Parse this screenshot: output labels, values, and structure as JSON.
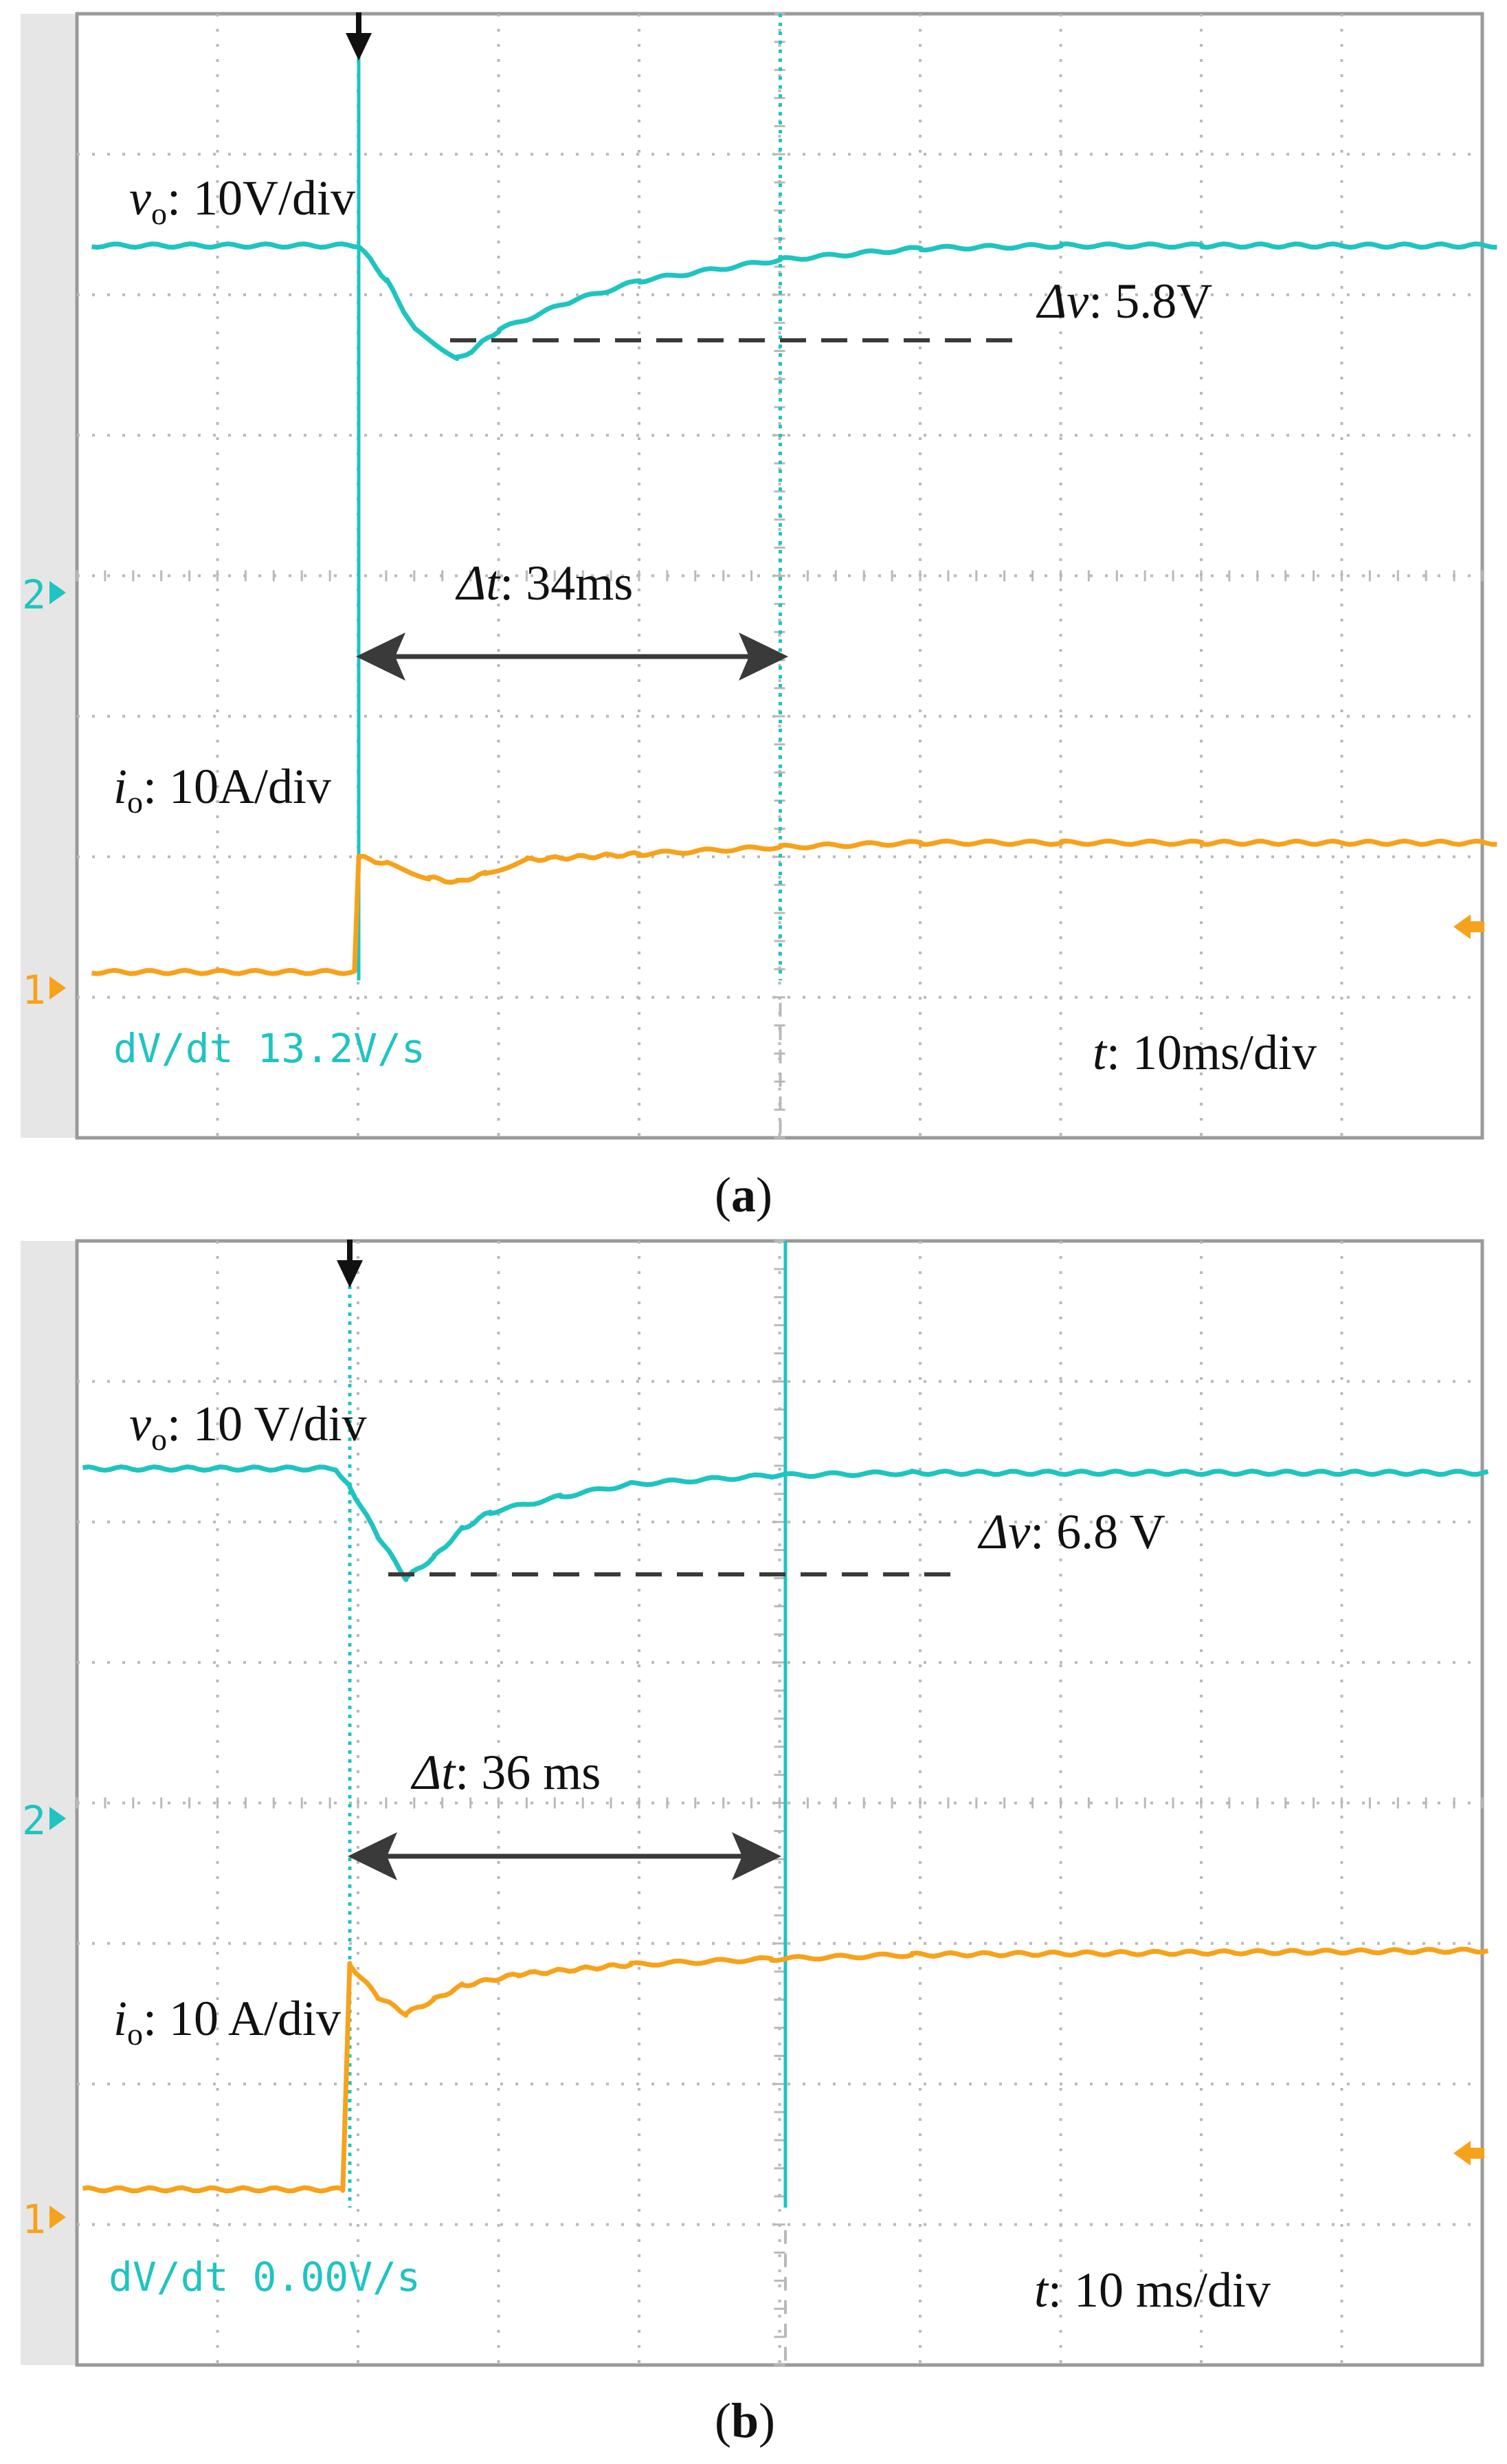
{
  "colors": {
    "ch2": "#1fc4c0",
    "ch1": "#f7a21b",
    "grid": "#b9b9b9",
    "frame": "#9a9a9a",
    "side": "#e6e6e6",
    "annot": "#3a3a3a"
  },
  "chart_data": [
    {
      "type": "line",
      "panel": "a",
      "caption_letter": "a",
      "grid_divisions": [
        10,
        8
      ],
      "x_units": "ms",
      "time_per_div_ms": 10,
      "trigger_t_ms": 0,
      "x_range_ms": [
        -19,
        81
      ],
      "series": [
        {
          "name": "vo",
          "channel": "2",
          "display_range_div": [
            -4,
            4
          ],
          "t_ms": [
            -19,
            0,
            2,
            4,
            7,
            8,
            10,
            15,
            20,
            30,
            40,
            50,
            60,
            81
          ],
          "div": [
            2.35,
            2.35,
            2.1,
            1.75,
            1.55,
            1.6,
            1.75,
            1.95,
            2.1,
            2.25,
            2.33,
            2.35,
            2.35,
            2.35
          ]
        },
        {
          "name": "io",
          "channel": "1",
          "t_ms": [
            -19,
            -0.3,
            0,
            2,
            5,
            7,
            9,
            12,
            20,
            30,
            40,
            50,
            60,
            81
          ],
          "div": [
            -2.82,
            -2.82,
            -2.0,
            -2.05,
            -2.15,
            -2.18,
            -2.12,
            -2.02,
            -1.98,
            -1.93,
            -1.9,
            -1.9,
            -1.9,
            -1.9
          ]
        }
      ],
      "channel_markers": [
        "2",
        "1"
      ],
      "cursor_t_ms": 30,
      "readout": "dV/dt 13.2V/s",
      "labels": {
        "vo_sym": "v",
        "vo_sub": "o",
        "vo_text": ": 10V/div",
        "io_sym": "i",
        "io_sub": "o",
        "io_text": ": 10A/div",
        "dv_sym": "Δv",
        "dv_text": ": 5.8V",
        "dt_sym": "Δt",
        "dt_text": ": 34ms",
        "t_sym": "t",
        "t_text": ": 10ms/div"
      }
    },
    {
      "type": "line",
      "panel": "b",
      "caption_letter": "b",
      "grid_divisions": [
        10,
        8
      ],
      "x_units": "ms",
      "time_per_div_ms": 10,
      "trigger_t_ms": 0,
      "x_range_ms": [
        -19,
        81
      ],
      "series": [
        {
          "name": "vo",
          "channel": "2",
          "t_ms": [
            -19,
            -1,
            0,
            2,
            4,
            6,
            8,
            10,
            15,
            20,
            30,
            40,
            81
          ],
          "div": [
            2.38,
            2.38,
            2.25,
            1.9,
            1.6,
            1.75,
            1.95,
            2.07,
            2.18,
            2.27,
            2.33,
            2.35,
            2.35
          ]
        },
        {
          "name": "io",
          "channel": "1",
          "t_ms": [
            -19,
            -0.5,
            0,
            2,
            4,
            6,
            8,
            12,
            20,
            30,
            40,
            81
          ],
          "div": [
            -2.75,
            -2.75,
            -1.15,
            -1.38,
            -1.5,
            -1.4,
            -1.3,
            -1.22,
            -1.15,
            -1.11,
            -1.08,
            -1.05
          ]
        }
      ],
      "channel_markers": [
        "2",
        "1"
      ],
      "cursor_t_ms": 31,
      "readout": "dV/dt 0.00V/s",
      "labels": {
        "vo_sym": "v",
        "vo_sub": "o",
        "vo_text": ": 10 V/div",
        "io_sym": "i",
        "io_sub": "o",
        "io_text": ": 10 A/div",
        "dv_sym": "Δv",
        "dv_text": ": 6.8 V",
        "dt_sym": "Δt",
        "dt_text": ": 36 ms",
        "t_sym": "t",
        "t_text": ": 10 ms/div"
      }
    }
  ]
}
